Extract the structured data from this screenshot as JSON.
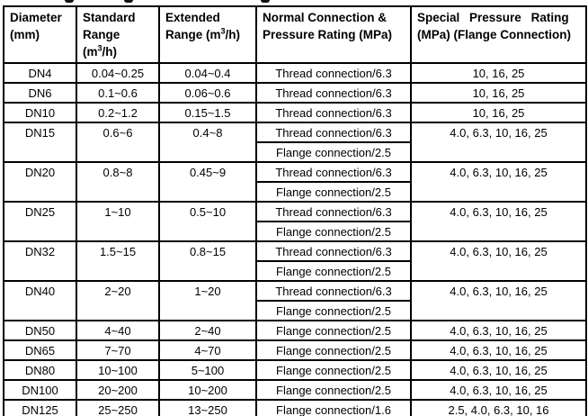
{
  "colors": {
    "text": "#000000",
    "border": "#000000",
    "background": "#ffffff"
  },
  "table": {
    "columns": [
      {
        "key": "diameter",
        "lines": [
          "Diameter",
          "(mm)"
        ]
      },
      {
        "key": "standard",
        "lines": [
          "Standard",
          "Range",
          "(m^3^/h)"
        ]
      },
      {
        "key": "extended",
        "lines": [
          "Extended",
          "Range (m^3^/h)"
        ]
      },
      {
        "key": "normal",
        "lines": [
          "Normal Connection &",
          "Pressure Rating (MPa)"
        ]
      },
      {
        "key": "special",
        "lines": [
          "Special Pressure Rating",
          "(MPa) (Flange Connection)"
        ]
      }
    ],
    "rows": [
      {
        "diameter": "DN4",
        "standard": "0.04~0.25",
        "extended": "0.04~0.4",
        "connections": [
          "Thread connection/6.3"
        ],
        "special": "10, 16, 25"
      },
      {
        "diameter": "DN6",
        "standard": "0.1~0.6",
        "extended": "0.06~0.6",
        "connections": [
          "Thread connection/6.3"
        ],
        "special": "10, 16, 25"
      },
      {
        "diameter": "DN10",
        "standard": "0.2~1.2",
        "extended": "0.15~1.5",
        "connections": [
          "Thread connection/6.3"
        ],
        "special": "10, 16, 25"
      },
      {
        "diameter": "DN15",
        "standard": "0.6~6",
        "extended": "0.4~8",
        "connections": [
          "Thread connection/6.3",
          "Flange connection/2.5"
        ],
        "special": "4.0, 6.3, 10, 16, 25"
      },
      {
        "diameter": "DN20",
        "standard": "0.8~8",
        "extended": "0.45~9",
        "connections": [
          "Thread connection/6.3",
          "Flange connection/2.5"
        ],
        "special": "4.0, 6.3, 10, 16, 25"
      },
      {
        "diameter": "DN25",
        "standard": "1~10",
        "extended": "0.5~10",
        "connections": [
          "Thread connection/6.3",
          "Flange connection/2.5"
        ],
        "special": "4.0, 6.3, 10, 16, 25"
      },
      {
        "diameter": "DN32",
        "standard": "1.5~15",
        "extended": "0.8~15",
        "connections": [
          "Thread connection/6.3",
          "Flange connection/2.5"
        ],
        "special": "4.0, 6.3, 10, 16, 25"
      },
      {
        "diameter": "DN40",
        "standard": "2~20",
        "extended": "1~20",
        "connections": [
          "Thread connection/6.3",
          "Flange connection/2.5"
        ],
        "special": "4.0, 6.3, 10, 16, 25"
      },
      {
        "diameter": "DN50",
        "standard": "4~40",
        "extended": "2~40",
        "connections": [
          "Flange connection/2.5"
        ],
        "special": "4.0, 6.3, 10, 16, 25"
      },
      {
        "diameter": "DN65",
        "standard": "7~70",
        "extended": "4~70",
        "connections": [
          "Flange connection/2.5"
        ],
        "special": "4.0, 6.3, 10, 16, 25"
      },
      {
        "diameter": "DN80",
        "standard": "10~100",
        "extended": "5~100",
        "connections": [
          "Flange connection/2.5"
        ],
        "special": "4.0, 6.3, 10, 16, 25"
      },
      {
        "diameter": "DN100",
        "standard": "20~200",
        "extended": "10~200",
        "connections": [
          "Flange connection/2.5"
        ],
        "special": "4.0, 6.3, 10, 16, 25"
      },
      {
        "diameter": "DN125",
        "standard": "25~250",
        "extended": "13~250",
        "connections": [
          "Flange connection/1.6"
        ],
        "special": "2.5, 4.0, 6.3, 10, 16"
      }
    ]
  }
}
